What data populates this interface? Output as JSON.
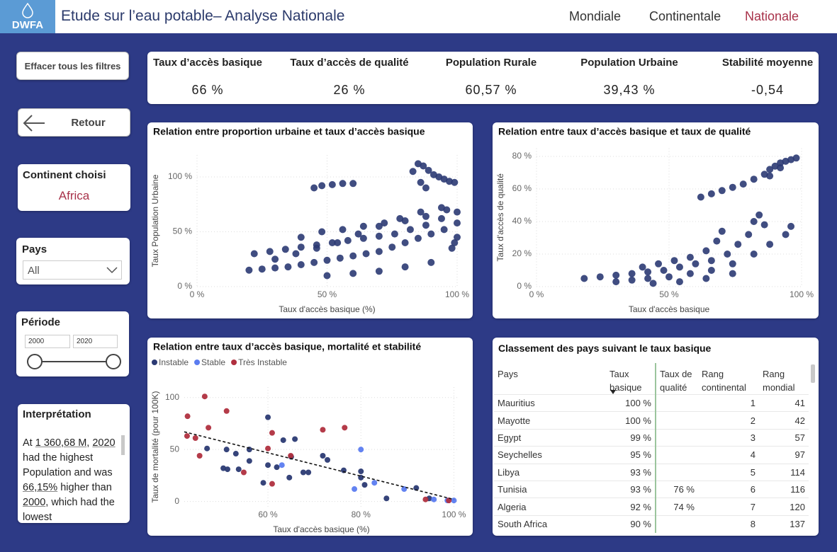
{
  "header": {
    "logo": "DWFA",
    "title": "Etude sur l’eau potable– Analyse Nationale",
    "nav": [
      "Mondiale",
      "Continentale",
      "Nationale"
    ],
    "active_nav": 2
  },
  "sidebar": {
    "clear_button": "Effacer tous les filtres",
    "back_button": "Retour",
    "continent_label": "Continent choisi",
    "continent_value": "Africa",
    "country_label": "Pays",
    "country_value": "All",
    "period_label": "Période",
    "period_start": "2000",
    "period_end": "2020",
    "interpretation_title": "Interprétation",
    "interpretation": [
      {
        "text": "At "
      },
      {
        "text": "1 360,68 M",
        "underline": true
      },
      {
        "text": ", "
      },
      {
        "text": "2020",
        "underline": true
      },
      {
        "text": " had the highest Population and was "
      },
      {
        "text": "66,15%",
        "underline": true
      },
      {
        "text": " higher than "
      },
      {
        "text": "2000",
        "underline": true
      },
      {
        "text": ", which had the lowest"
      }
    ]
  },
  "kpis": [
    {
      "label": "Taux d’accès basique",
      "value": "66 %"
    },
    {
      "label": "Taux d’accès de qualité",
      "value": "26 %"
    },
    {
      "label": "Population Rurale",
      "value": "60,57 %"
    },
    {
      "label": "Population Urbaine",
      "value": "39,43 %"
    },
    {
      "label": "Stabilité moyenne",
      "value": "-0,54"
    }
  ],
  "chart_data": [
    {
      "type": "scatter",
      "title": "Relation entre proportion urbaine et taux d’accès basique",
      "x_label": "Taux d'accès basique (%)",
      "y_label": "Taux Population Urbaine",
      "xlim": [
        0,
        100
      ],
      "ylim": [
        0,
        120
      ],
      "xticks": [
        {
          "value": 0,
          "label": "0 %"
        },
        {
          "value": 50,
          "label": "50 %"
        },
        {
          "value": 100,
          "label": "100 %"
        }
      ],
      "yticks": [
        {
          "value": 0,
          "label": "0 %"
        },
        {
          "value": 50,
          "label": "50 %"
        },
        {
          "value": 100,
          "label": "100 %"
        }
      ],
      "grid": true,
      "series": [
        {
          "color": "#2b3a73",
          "x": [
            45,
            48,
            52,
            56,
            60,
            85,
            87,
            89,
            91,
            93,
            95,
            97,
            99,
            83,
            86,
            88,
            20,
            25,
            30,
            35,
            40,
            45,
            50,
            55,
            60,
            65,
            70,
            75,
            80,
            85,
            90,
            95,
            100,
            22,
            28,
            34,
            40,
            46,
            52,
            58,
            64,
            70,
            76,
            82,
            88,
            94,
            100,
            30,
            38,
            46,
            54,
            62,
            70,
            78,
            86,
            94,
            40,
            48,
            56,
            64,
            72,
            80,
            88,
            96,
            50,
            60,
            70,
            80,
            90,
            99,
            100,
            98
          ],
          "values": [
            90,
            92,
            93,
            94,
            94,
            112,
            110,
            106,
            102,
            100,
            98,
            96,
            95,
            105,
            95,
            90,
            15,
            16,
            17,
            18,
            20,
            22,
            24,
            26,
            28,
            30,
            32,
            36,
            40,
            44,
            48,
            52,
            58,
            30,
            32,
            34,
            36,
            38,
            40,
            42,
            44,
            46,
            48,
            52,
            56,
            62,
            68,
            25,
            30,
            35,
            40,
            48,
            55,
            62,
            68,
            72,
            45,
            50,
            52,
            55,
            58,
            60,
            64,
            70,
            10,
            12,
            14,
            18,
            22,
            40,
            45,
            35
          ]
        }
      ]
    },
    {
      "type": "scatter",
      "title": "Relation entre taux d’accès basique et taux de qualité",
      "x_label": "Taux d'accès basique",
      "y_label": "Taux d'accès de qualité",
      "xlim": [
        0,
        100
      ],
      "ylim": [
        0,
        85
      ],
      "xticks": [
        {
          "value": 0,
          "label": "0 %"
        },
        {
          "value": 50,
          "label": "50 %"
        },
        {
          "value": 100,
          "label": "100 %"
        }
      ],
      "yticks": [
        {
          "value": 0,
          "label": "0 %"
        },
        {
          "value": 20,
          "label": "20 %"
        },
        {
          "value": 40,
          "label": "40 %"
        },
        {
          "value": 60,
          "label": "60 %"
        },
        {
          "value": 80,
          "label": "80 %"
        }
      ],
      "grid": true,
      "series": [
        {
          "color": "#2b3a73",
          "x": [
            62,
            66,
            70,
            74,
            78,
            82,
            86,
            88,
            90,
            92,
            94,
            96,
            98,
            88,
            92,
            18,
            24,
            30,
            36,
            42,
            48,
            54,
            60,
            66,
            72,
            76,
            80,
            82,
            84,
            86,
            30,
            36,
            42,
            50,
            58,
            66,
            74,
            82,
            88,
            94,
            96,
            40,
            46,
            52,
            58,
            64,
            68,
            70,
            44,
            54,
            64,
            74
          ],
          "values": [
            55,
            57,
            59,
            61,
            63,
            66,
            69,
            72,
            74,
            76,
            77,
            78,
            79,
            68,
            73,
            5,
            6,
            7,
            8,
            9,
            10,
            12,
            14,
            16,
            20,
            26,
            32,
            40,
            44,
            38,
            3,
            4,
            5,
            6,
            8,
            10,
            14,
            20,
            26,
            32,
            37,
            12,
            14,
            16,
            18,
            22,
            28,
            34,
            2,
            3,
            5,
            8
          ]
        }
      ]
    },
    {
      "type": "scatter",
      "title": "Relation entre taux d’accès basique, mortalité et stabilité",
      "x_label": "Taux d'accès basique (%)",
      "y_label": "Taux de mortalité (pour 100K)",
      "xlim": [
        42,
        101
      ],
      "ylim": [
        -5,
        110
      ],
      "xticks": [
        {
          "value": 60,
          "label": "60 %"
        },
        {
          "value": 80,
          "label": "80 %"
        },
        {
          "value": 100,
          "label": "100 %"
        }
      ],
      "yticks": [
        0,
        50,
        100
      ],
      "grid": true,
      "legend": "top-left",
      "series": [
        {
          "name": "Instable",
          "color": "#2b3a73",
          "x": [
            46.9,
            51.1,
            53.1,
            56,
            50.4,
            51.3,
            53.7,
            56,
            60,
            60,
            59,
            61.9,
            63.3,
            64.6,
            65,
            65.8,
            67.6,
            68.7,
            71.8,
            72.8,
            76.3,
            80,
            80,
            80.8,
            85.5,
            91.9,
            94.7
          ],
          "values": [
            51,
            50,
            46,
            50,
            32,
            31,
            31,
            39,
            81,
            35,
            18,
            33,
            59,
            23,
            43,
            60,
            28,
            28,
            44,
            40,
            30,
            29,
            23,
            16,
            3,
            13,
            3
          ]
        },
        {
          "name": "Stable",
          "color": "#5b7cf0",
          "x": [
            63,
            80,
            78.6,
            82.9,
            89.3,
            95.7,
            100,
            98.6
          ],
          "values": [
            35,
            50,
            12,
            18,
            12,
            2,
            1,
            1
          ]
        },
        {
          "name": "Très Instable",
          "color": "#b0303f",
          "x": [
            42.7,
            46.4,
            44.4,
            45.3,
            47.2,
            51.1,
            60,
            60.9,
            64.9,
            60.9,
            54.8,
            71.8,
            76.5,
            93.9,
            98.9,
            42.6
          ],
          "values": [
            82,
            101,
            61,
            44,
            71,
            87,
            51,
            66,
            44,
            17,
            28,
            69,
            71,
            2,
            1,
            63
          ]
        }
      ],
      "trend": {
        "x": [
          42,
          100
        ],
        "values": [
          67,
          2
        ],
        "color": "#111111"
      }
    }
  ],
  "table": {
    "title": "Classement des pays suivant le taux basique",
    "columns": [
      "Pays",
      "Taux basique",
      "Taux de qualité",
      "Rang continental",
      "Rang mondial"
    ],
    "sort_column": 1,
    "rows": [
      [
        "Mauritius",
        "100 %",
        null,
        1,
        41
      ],
      [
        "Mayotte",
        "100 %",
        null,
        2,
        42
      ],
      [
        "Egypt",
        "99 %",
        null,
        3,
        57
      ],
      [
        "Seychelles",
        "95 %",
        null,
        4,
        97
      ],
      [
        "Libya",
        "93 %",
        null,
        5,
        114
      ],
      [
        "Tunisia",
        "93 %",
        "76 %",
        6,
        116
      ],
      [
        "Algeria",
        "92 %",
        "74 %",
        7,
        120
      ],
      [
        "South Africa",
        "90 %",
        null,
        8,
        137
      ]
    ]
  }
}
